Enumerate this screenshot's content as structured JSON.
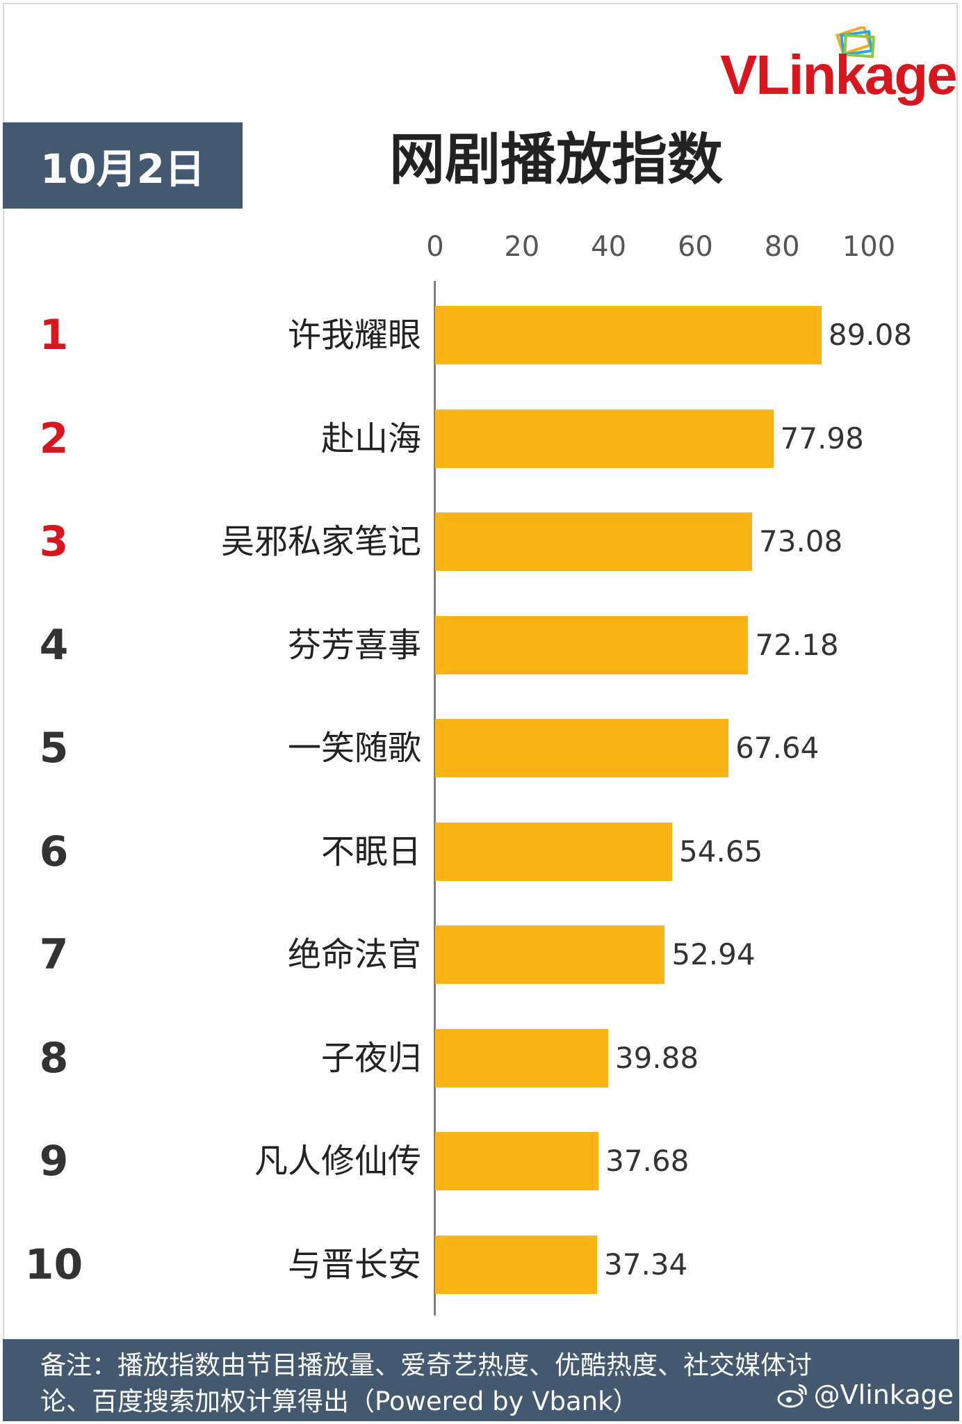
{
  "header": {
    "date": "10月2日",
    "title": "网剧播放指数",
    "logo_text_v": "V",
    "logo_text_rest": "Linkage",
    "logo_display": "VLinkage"
  },
  "colors": {
    "bar": "#fbb416",
    "header_bg": "#445970",
    "top_rank": "#d7161e",
    "logo_red": "#d7161e"
  },
  "chart_data": {
    "type": "bar",
    "orientation": "horizontal",
    "title": "网剧播放指数",
    "xlim": [
      0,
      100
    ],
    "ticks": [
      "0",
      "20",
      "40",
      "60",
      "80",
      "100"
    ],
    "ranks": [
      "1",
      "2",
      "3",
      "4",
      "5",
      "6",
      "7",
      "8",
      "9",
      "10"
    ],
    "categories": [
      "许我耀眼",
      "赴山海",
      "吴邪私家笔记",
      "芬芳喜事",
      "一笑随歌",
      "不眠日",
      "绝命法官",
      "子夜归",
      "凡人修仙传",
      "与晋长安"
    ],
    "values": [
      89.08,
      77.98,
      73.08,
      72.18,
      67.64,
      54.65,
      52.94,
      39.88,
      37.68,
      37.34
    ],
    "value_labels": [
      "89.08",
      "77.98",
      "73.08",
      "72.18",
      "67.64",
      "54.65",
      "52.94",
      "39.88",
      "37.68",
      "37.34"
    ],
    "grid": false
  },
  "footer": {
    "note_line1": "备注：播放指数由节目播放量、爱奇艺热度、优酷热度、社交媒体讨",
    "note_line2": "论、百度搜索加权计算得出（Powered by Vbank）",
    "weibo_handle": "@Vlinkage"
  },
  "icons": {
    "logo_mark": "stacked-frames-icon",
    "weibo": "weibo-icon"
  }
}
